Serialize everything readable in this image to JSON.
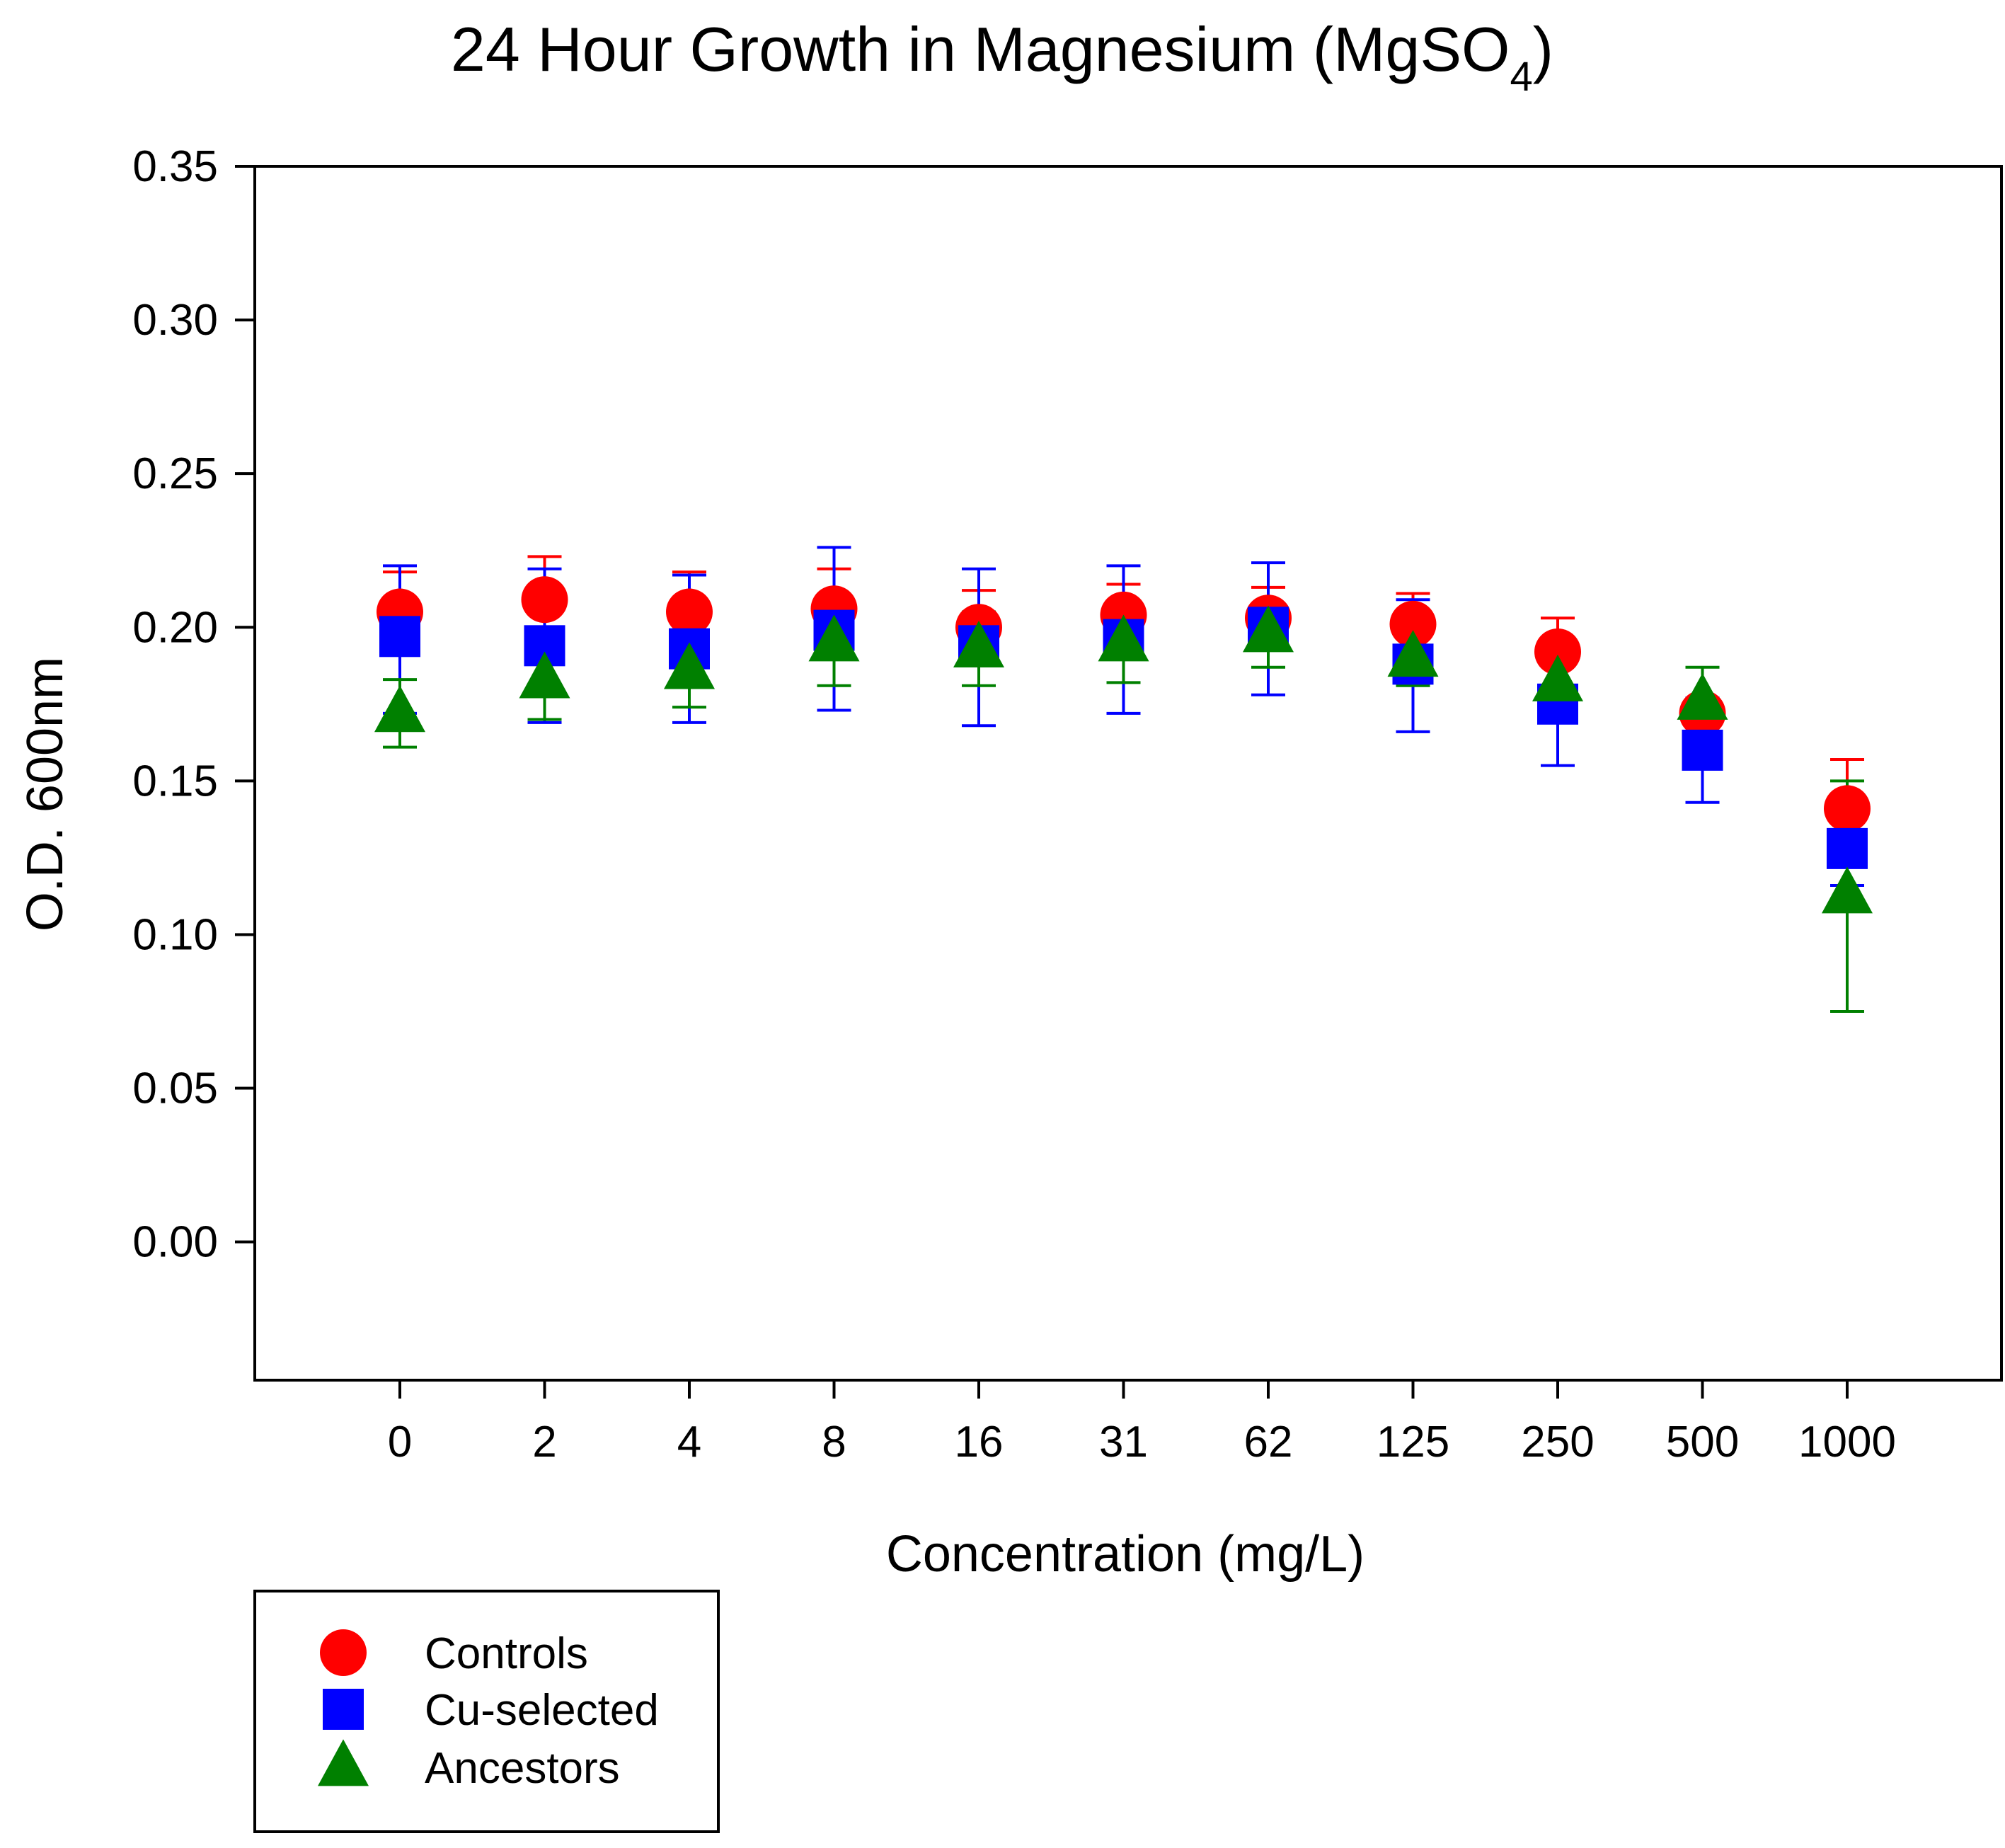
{
  "chart_data": {
    "type": "scatter",
    "title": {
      "prefix": "24 Hour Growth in Magnesium (MgSO",
      "subscript": "4",
      "suffix": ")"
    },
    "xlabel": "Concentration (mg/L)",
    "ylabel": "O.D. 600nm",
    "categories": [
      "0",
      "2",
      "4",
      "8",
      "16",
      "31",
      "62",
      "125",
      "250",
      "500",
      "1000"
    ],
    "ylim": [
      -0.045,
      0.35
    ],
    "yticks": [
      0.0,
      0.05,
      0.1,
      0.15,
      0.2,
      0.25,
      0.3,
      0.35
    ],
    "ytick_labels": [
      "0.00",
      "0.05",
      "0.10",
      "0.15",
      "0.20",
      "0.25",
      "0.30",
      "0.35"
    ],
    "legend_position": "bottom-left, outside plot",
    "series": [
      {
        "name": "Controls",
        "marker": "circle",
        "color": "#ff0000",
        "values": [
          0.205,
          0.209,
          0.205,
          0.206,
          0.2,
          0.204,
          0.203,
          0.201,
          0.192,
          0.172,
          0.141
        ],
        "error_upper": [
          0.218,
          0.223,
          0.218,
          0.219,
          0.212,
          0.214,
          0.213,
          0.211,
          0.203,
          0.176,
          0.157
        ],
        "error_lower": [
          0.205,
          0.209,
          0.205,
          0.206,
          0.2,
          0.204,
          0.203,
          0.201,
          0.192,
          0.172,
          0.141
        ]
      },
      {
        "name": "Cu-selected",
        "marker": "square",
        "color": "#0000ff",
        "values": [
          0.197,
          0.194,
          0.193,
          0.199,
          0.194,
          0.196,
          0.2,
          0.188,
          0.175,
          0.16,
          0.128
        ],
        "error_upper": [
          0.22,
          0.219,
          0.217,
          0.226,
          0.219,
          0.22,
          0.221,
          0.209,
          0.193,
          0.177,
          0.141
        ],
        "error_lower": [
          0.172,
          0.169,
          0.169,
          0.173,
          0.168,
          0.172,
          0.178,
          0.166,
          0.155,
          0.143,
          0.116
        ]
      },
      {
        "name": "Ancestors",
        "marker": "triangle",
        "color": "#008000",
        "values": [
          0.172,
          0.183,
          0.186,
          0.195,
          0.193,
          0.195,
          0.198,
          0.19,
          0.182,
          0.176,
          0.113
        ],
        "error_upper": [
          0.183,
          0.197,
          0.199,
          0.206,
          0.205,
          0.205,
          0.206,
          0.199,
          0.192,
          0.187,
          0.15
        ],
        "error_lower": [
          0.161,
          0.17,
          0.174,
          0.181,
          0.181,
          0.182,
          0.187,
          0.181,
          0.171,
          0.165,
          0.075
        ]
      }
    ]
  }
}
